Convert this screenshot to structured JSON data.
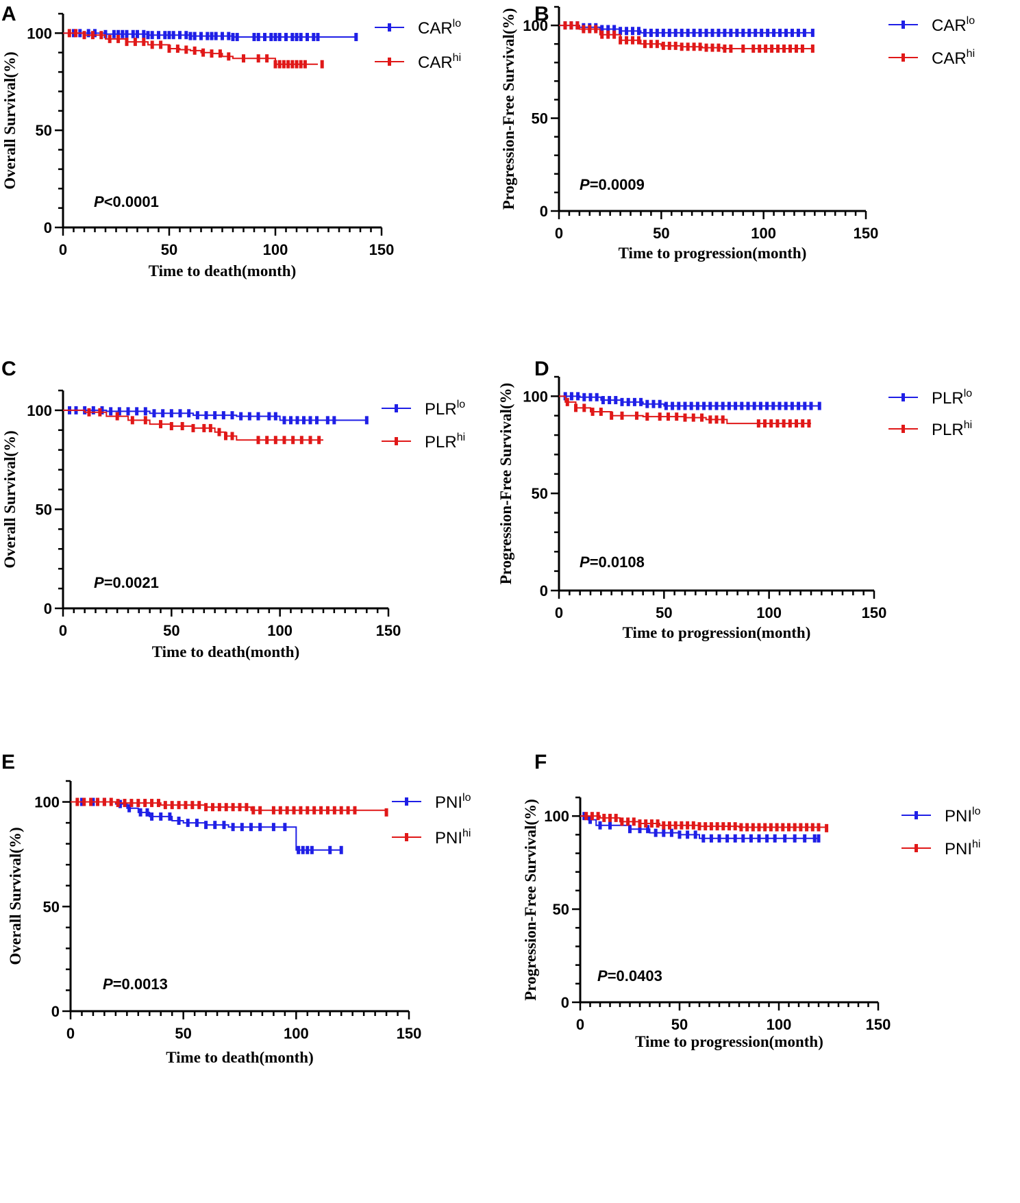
{
  "chart_data": [
    {
      "type": "line",
      "panel": "A",
      "xlabel": "Time to death(month)",
      "ylabel": "Overall Survival(%)",
      "xlim": [
        0,
        150
      ],
      "ylim": [
        0,
        110
      ],
      "xticks": [
        0,
        50,
        100,
        150
      ],
      "yticks": [
        0,
        50,
        100
      ],
      "p_prefix": "P",
      "p_rest": "<0.0001",
      "series": [
        {
          "base": "CAR",
          "sup": "lo",
          "color": "#1f1fe6",
          "x": [
            0,
            20,
            40,
            60,
            80,
            138
          ],
          "y": [
            100,
            99.5,
            99,
            98.5,
            98,
            98
          ],
          "censor": [
            5,
            8,
            12,
            15,
            20,
            24,
            26,
            28,
            30,
            33,
            35,
            38,
            40,
            42,
            45,
            48,
            50,
            52,
            55,
            58,
            60,
            62,
            65,
            68,
            70,
            72,
            75,
            78,
            80,
            82,
            90,
            92,
            95,
            98,
            100,
            102,
            105,
            108,
            110,
            112,
            115,
            118,
            120,
            138
          ]
        },
        {
          "base": "CAR",
          "sup": "hi",
          "color": "#e01818",
          "x": [
            0,
            10,
            20,
            30,
            40,
            50,
            55,
            60,
            65,
            70,
            75,
            80,
            90,
            100,
            120
          ],
          "y": [
            100,
            99,
            97,
            95.5,
            94,
            92,
            91.5,
            91,
            90,
            89.5,
            88,
            87,
            87,
            84,
            84
          ],
          "censor": [
            3,
            6,
            10,
            14,
            18,
            22,
            26,
            30,
            34,
            38,
            42,
            46,
            50,
            54,
            58,
            62,
            66,
            70,
            74,
            78,
            85,
            92,
            96,
            100,
            102,
            104,
            106,
            108,
            110,
            112,
            114,
            122
          ]
        }
      ]
    },
    {
      "type": "line",
      "panel": "B",
      "xlabel": "Time to progression(month)",
      "ylabel": "Progression-Free Survival(%)",
      "xlim": [
        0,
        150
      ],
      "ylim": [
        0,
        110
      ],
      "xticks": [
        0,
        50,
        100,
        150
      ],
      "yticks": [
        0,
        50,
        100
      ],
      "p_prefix": "P",
      "p_rest": "=0.0009",
      "series": [
        {
          "base": "CAR",
          "sup": "lo",
          "color": "#1f1fe6",
          "x": [
            0,
            10,
            20,
            30,
            40,
            124
          ],
          "y": [
            100,
            99,
            98,
            97,
            96,
            96
          ],
          "censor": [
            3,
            6,
            9,
            12,
            15,
            18,
            21,
            24,
            27,
            30,
            33,
            36,
            39,
            42,
            45,
            48,
            51,
            54,
            57,
            60,
            63,
            66,
            69,
            72,
            75,
            78,
            81,
            84,
            87,
            90,
            93,
            96,
            99,
            102,
            105,
            108,
            111,
            114,
            117,
            120,
            124
          ]
        },
        {
          "base": "CAR",
          "sup": "hi",
          "color": "#e01818",
          "x": [
            0,
            10,
            20,
            30,
            40,
            50,
            60,
            70,
            80,
            124
          ],
          "y": [
            100,
            98,
            95,
            92,
            90,
            89,
            88.5,
            88,
            87.5,
            87.5
          ],
          "censor": [
            3,
            6,
            9,
            12,
            15,
            18,
            21,
            24,
            27,
            30,
            33,
            36,
            39,
            42,
            45,
            48,
            51,
            54,
            57,
            60,
            63,
            66,
            69,
            72,
            75,
            78,
            81,
            84,
            90,
            95,
            98,
            101,
            104,
            107,
            110,
            113,
            116,
            119,
            124
          ]
        }
      ]
    },
    {
      "type": "line",
      "panel": "C",
      "xlabel": "Time to death(month)",
      "ylabel": "Overall Survival(%)",
      "xlim": [
        0,
        150
      ],
      "ylim": [
        0,
        110
      ],
      "xticks": [
        0,
        50,
        100,
        150
      ],
      "yticks": [
        0,
        50,
        100
      ],
      "p_prefix": "P",
      "p_rest": "=0.0021",
      "series": [
        {
          "base": "PLR",
          "sup": "lo",
          "color": "#1f1fe6",
          "x": [
            0,
            20,
            40,
            60,
            80,
            100,
            140
          ],
          "y": [
            100,
            99.5,
            98.5,
            97.5,
            97,
            95,
            95
          ],
          "censor": [
            3,
            6,
            10,
            14,
            18,
            22,
            26,
            30,
            34,
            38,
            42,
            46,
            50,
            54,
            58,
            62,
            66,
            70,
            74,
            78,
            82,
            86,
            90,
            95,
            98,
            102,
            105,
            108,
            111,
            114,
            117,
            122,
            125,
            140
          ]
        },
        {
          "base": "PLR",
          "sup": "hi",
          "color": "#e01818",
          "x": [
            0,
            10,
            20,
            30,
            40,
            50,
            60,
            70,
            75,
            80,
            120
          ],
          "y": [
            100,
            99,
            97,
            95,
            93,
            92,
            91,
            89,
            87,
            85,
            85
          ],
          "censor": [
            12,
            17,
            25,
            32,
            38,
            45,
            50,
            55,
            60,
            65,
            68,
            72,
            75,
            78,
            90,
            94,
            98,
            102,
            106,
            110,
            114,
            118
          ]
        }
      ]
    },
    {
      "type": "line",
      "panel": "D",
      "xlabel": "Time to progression(month)",
      "ylabel": "Progression-Free Survival(%)",
      "xlim": [
        0,
        150
      ],
      "ylim": [
        0,
        110
      ],
      "xticks": [
        0,
        50,
        100,
        150
      ],
      "yticks": [
        0,
        50,
        100
      ],
      "p_prefix": "P",
      "p_rest": "=0.0108",
      "series": [
        {
          "base": "PLR",
          "sup": "lo",
          "color": "#1f1fe6",
          "x": [
            0,
            10,
            20,
            30,
            40,
            50,
            124
          ],
          "y": [
            100,
            99.5,
            98,
            97,
            96,
            95,
            95
          ],
          "censor": [
            3,
            6,
            9,
            12,
            15,
            18,
            21,
            24,
            27,
            30,
            33,
            36,
            39,
            42,
            45,
            48,
            51,
            54,
            57,
            60,
            63,
            66,
            69,
            72,
            75,
            78,
            81,
            84,
            87,
            90,
            93,
            96,
            99,
            102,
            105,
            108,
            111,
            114,
            117,
            120,
            124
          ]
        },
        {
          "base": "PLR",
          "sup": "hi",
          "color": "#e01818",
          "x": [
            0,
            3,
            8,
            15,
            25,
            40,
            60,
            70,
            80,
            120
          ],
          "y": [
            100,
            97,
            94,
            92,
            90,
            89.5,
            89,
            88,
            86,
            86
          ],
          "censor": [
            4,
            8,
            12,
            16,
            20,
            25,
            30,
            37,
            42,
            48,
            52,
            56,
            60,
            64,
            68,
            72,
            75,
            78,
            95,
            98,
            101,
            104,
            107,
            110,
            113,
            116,
            119
          ]
        }
      ]
    },
    {
      "type": "line",
      "panel": "E",
      "xlabel": "Time to death(month)",
      "ylabel": "Overall Survival(%)",
      "xlim": [
        0,
        150
      ],
      "ylim": [
        0,
        110
      ],
      "xticks": [
        0,
        50,
        100,
        150
      ],
      "yticks": [
        0,
        50,
        100
      ],
      "p_prefix": "P",
      "p_rest": "=0.0013",
      "series": [
        {
          "base": "PNI",
          "sup": "lo",
          "color": "#1f1fe6",
          "x": [
            0,
            20,
            25,
            30,
            35,
            45,
            50,
            55,
            60,
            70,
            75,
            100,
            120
          ],
          "y": [
            100,
            99,
            97,
            95,
            93,
            91,
            90,
            90,
            89,
            88,
            88,
            77,
            77
          ],
          "censor": [
            5,
            10,
            15,
            22,
            26,
            31,
            34,
            36,
            40,
            44,
            48,
            52,
            56,
            60,
            64,
            68,
            72,
            76,
            80,
            84,
            90,
            95,
            101,
            103,
            105,
            107,
            115,
            120
          ]
        },
        {
          "base": "PNI",
          "sup": "hi",
          "color": "#e01818",
          "x": [
            0,
            20,
            40,
            60,
            80,
            140
          ],
          "y": [
            100,
            99.5,
            98.5,
            97.5,
            96,
            95
          ],
          "censor": [
            3,
            6,
            9,
            12,
            15,
            18,
            21,
            24,
            27,
            30,
            33,
            36,
            39,
            42,
            45,
            48,
            51,
            54,
            57,
            60,
            63,
            66,
            69,
            72,
            75,
            78,
            81,
            84,
            90,
            93,
            96,
            99,
            102,
            105,
            108,
            111,
            114,
            117,
            120,
            123,
            126,
            140
          ]
        }
      ]
    },
    {
      "type": "line",
      "panel": "F",
      "xlabel": "Time to progression(month)",
      "ylabel": "Progression-Free Survival(%)",
      "xlim": [
        0,
        150
      ],
      "ylim": [
        0,
        110
      ],
      "xticks": [
        0,
        50,
        100,
        150
      ],
      "yticks": [
        0,
        50,
        100
      ],
      "p_prefix": "P",
      "p_rest": "=0.0403",
      "series": [
        {
          "base": "PNI",
          "sup": "lo",
          "color": "#1f1fe6",
          "x": [
            0,
            4,
            8,
            25,
            35,
            50,
            60,
            120
          ],
          "y": [
            100,
            98,
            95,
            93,
            91,
            90,
            88,
            88
          ],
          "censor": [
            2,
            5,
            10,
            15,
            25,
            30,
            34,
            38,
            42,
            46,
            50,
            54,
            58,
            62,
            66,
            70,
            74,
            78,
            82,
            86,
            90,
            94,
            98,
            103,
            108,
            113,
            118,
            120
          ]
        },
        {
          "base": "PNI",
          "sup": "hi",
          "color": "#e01818",
          "x": [
            0,
            10,
            20,
            30,
            40,
            60,
            80,
            124
          ],
          "y": [
            100,
            99,
            97,
            96,
            95,
            94.5,
            94,
            93.5
          ],
          "censor": [
            3,
            6,
            9,
            12,
            15,
            18,
            21,
            24,
            27,
            30,
            33,
            36,
            39,
            42,
            45,
            48,
            51,
            54,
            57,
            60,
            63,
            66,
            69,
            72,
            75,
            78,
            81,
            84,
            87,
            90,
            93,
            96,
            99,
            102,
            105,
            108,
            111,
            114,
            117,
            120,
            124
          ]
        }
      ]
    }
  ]
}
